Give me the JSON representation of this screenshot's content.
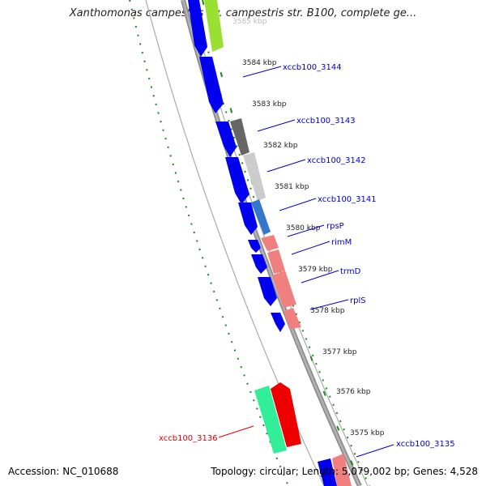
{
  "title": "Xanthomonas campestris pv. campestris str. B100, complete ge...",
  "ticks": [
    "3585 kbp",
    "3584 kbp",
    "3583 kbp",
    "3582 kbp",
    "3581 kbp",
    "3580 kbp",
    "3579 kbp",
    "3578 kbp",
    "3577 kbp",
    "3576 kbp",
    "3575 kbp"
  ],
  "genes": [
    "xccb100_3144",
    "xccb100_3143",
    "xccb100_3142",
    "xccb100_3141",
    "rpsP",
    "rimM",
    "trmD",
    "rplS",
    "xccb100_3136",
    "xccb100_3135"
  ],
  "accession": "Accession: NC_010688",
  "topology": "Topology: circular; Length: 5,079,002 bp; Genes: 4,528",
  "colors": {
    "forward_strand": "#0000ee",
    "reverse_strand_pink": "#f08080",
    "highlight_gene": "#ee0000",
    "gc_track": "#1a8a1a"
  }
}
